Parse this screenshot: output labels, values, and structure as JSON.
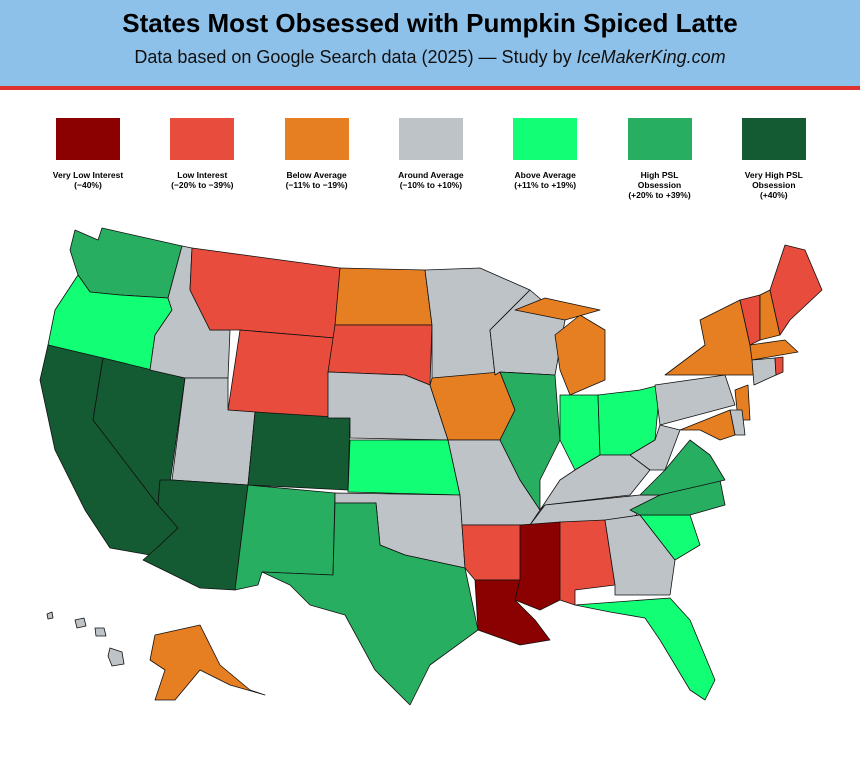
{
  "header": {
    "title": "States Most Obsessed with Pumpkin Spiced Latte",
    "subtitle": "Data based on Google Search data (2025) — Study by",
    "source": "IceMakerKing.com"
  },
  "legend": [
    {
      "label": "Very Low Interest",
      "range": "(−40%)",
      "color": "#8b0000"
    },
    {
      "label": "Low Interest",
      "range": "(−20% to −39%)",
      "color": "#e74c3c"
    },
    {
      "label": "Below Average",
      "range": "(−11% to −19%)",
      "color": "#e67e22"
    },
    {
      "label": "Around Average",
      "range": "(−10% to +10%)",
      "color": "#bdc3c7"
    },
    {
      "label": "Above Average",
      "range": "(+11% to +19%)",
      "color": "#12ff75"
    },
    {
      "label": "High PSL Obsession",
      "range": "(+20% to +39%)",
      "color": "#27ae60"
    },
    {
      "label": "Very High PSL Obsession",
      "range": "(+40%)",
      "color": "#145a32"
    }
  ]
}
